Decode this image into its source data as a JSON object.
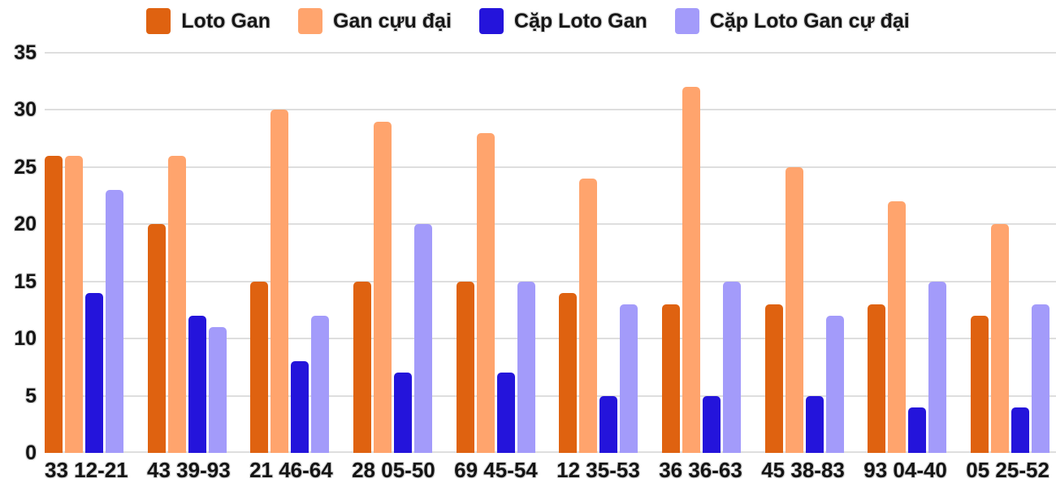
{
  "chart_data": {
    "type": "bar",
    "title": "",
    "categories": [
      "33 12-21",
      "43 39-93",
      "21 46-64",
      "28 05-50",
      "69 45-54",
      "12 35-53",
      "36 36-63",
      "45 38-83",
      "93 04-40",
      "05 25-52"
    ],
    "series": [
      {
        "name": "Loto Gan",
        "color": "#df6210",
        "values": [
          26,
          20,
          15,
          15,
          15,
          14,
          13,
          13,
          13,
          12
        ]
      },
      {
        "name": "Gan cựu đại",
        "color": "#ffa46d",
        "values": [
          26,
          26,
          30,
          29,
          28,
          24,
          32,
          25,
          22,
          20
        ]
      },
      {
        "name": "Cặp Loto Gan",
        "color": "#2414db",
        "values": [
          14,
          12,
          8,
          7,
          7,
          5,
          5,
          5,
          4,
          4
        ]
      },
      {
        "name": "Cặp Loto Gan cự đại",
        "color": "#a39bfa",
        "values": [
          23,
          11,
          12,
          20,
          15,
          13,
          15,
          12,
          15,
          13
        ]
      }
    ],
    "xlabel": "",
    "ylabel": "",
    "ylim": [
      0,
      35
    ],
    "yticks": [
      0,
      5,
      10,
      15,
      20,
      25,
      30,
      35
    ],
    "grid": true,
    "gridline_color": "#dedede",
    "legend_position": "top",
    "background_color": "#ffffff",
    "text_color": "#141414"
  }
}
